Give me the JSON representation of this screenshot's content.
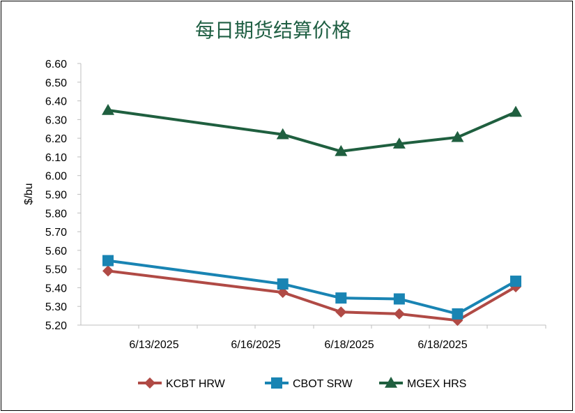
{
  "chart_data": {
    "type": "line",
    "title": "每日期货结算价格",
    "xlabel": "",
    "ylabel": "$/bu",
    "ylim": [
      5.2,
      6.6
    ],
    "yticks": [
      "6.60",
      "6.50",
      "6.40",
      "6.30",
      "6.20",
      "6.10",
      "6.00",
      "5.90",
      "5.80",
      "5.70",
      "5.60",
      "5.50",
      "5.40",
      "5.30",
      "5.20"
    ],
    "xticks": [
      "6/13/2025",
      "6/16/2025",
      "6/18/2025",
      "6/18/2025"
    ],
    "grid": false,
    "legend_position": "bottom",
    "colors": {
      "title": "#1f5f43",
      "axis": "#bfbfbf",
      "KCBT HRW": "#b04a45",
      "CBOT SRW": "#1984b3",
      "MGEX HRS": "#1f5f3f"
    },
    "series": [
      {
        "name": "KCBT HRW",
        "marker": "diamond",
        "values": [
          5.49,
          5.375,
          5.27,
          5.26,
          5.225,
          5.405
        ]
      },
      {
        "name": "CBOT SRW",
        "marker": "square",
        "values": [
          5.545,
          5.42,
          5.345,
          5.34,
          5.26,
          5.435
        ]
      },
      {
        "name": "MGEX HRS",
        "marker": "triangle",
        "values": [
          6.35,
          6.22,
          6.13,
          6.17,
          6.205,
          6.34
        ]
      }
    ]
  }
}
